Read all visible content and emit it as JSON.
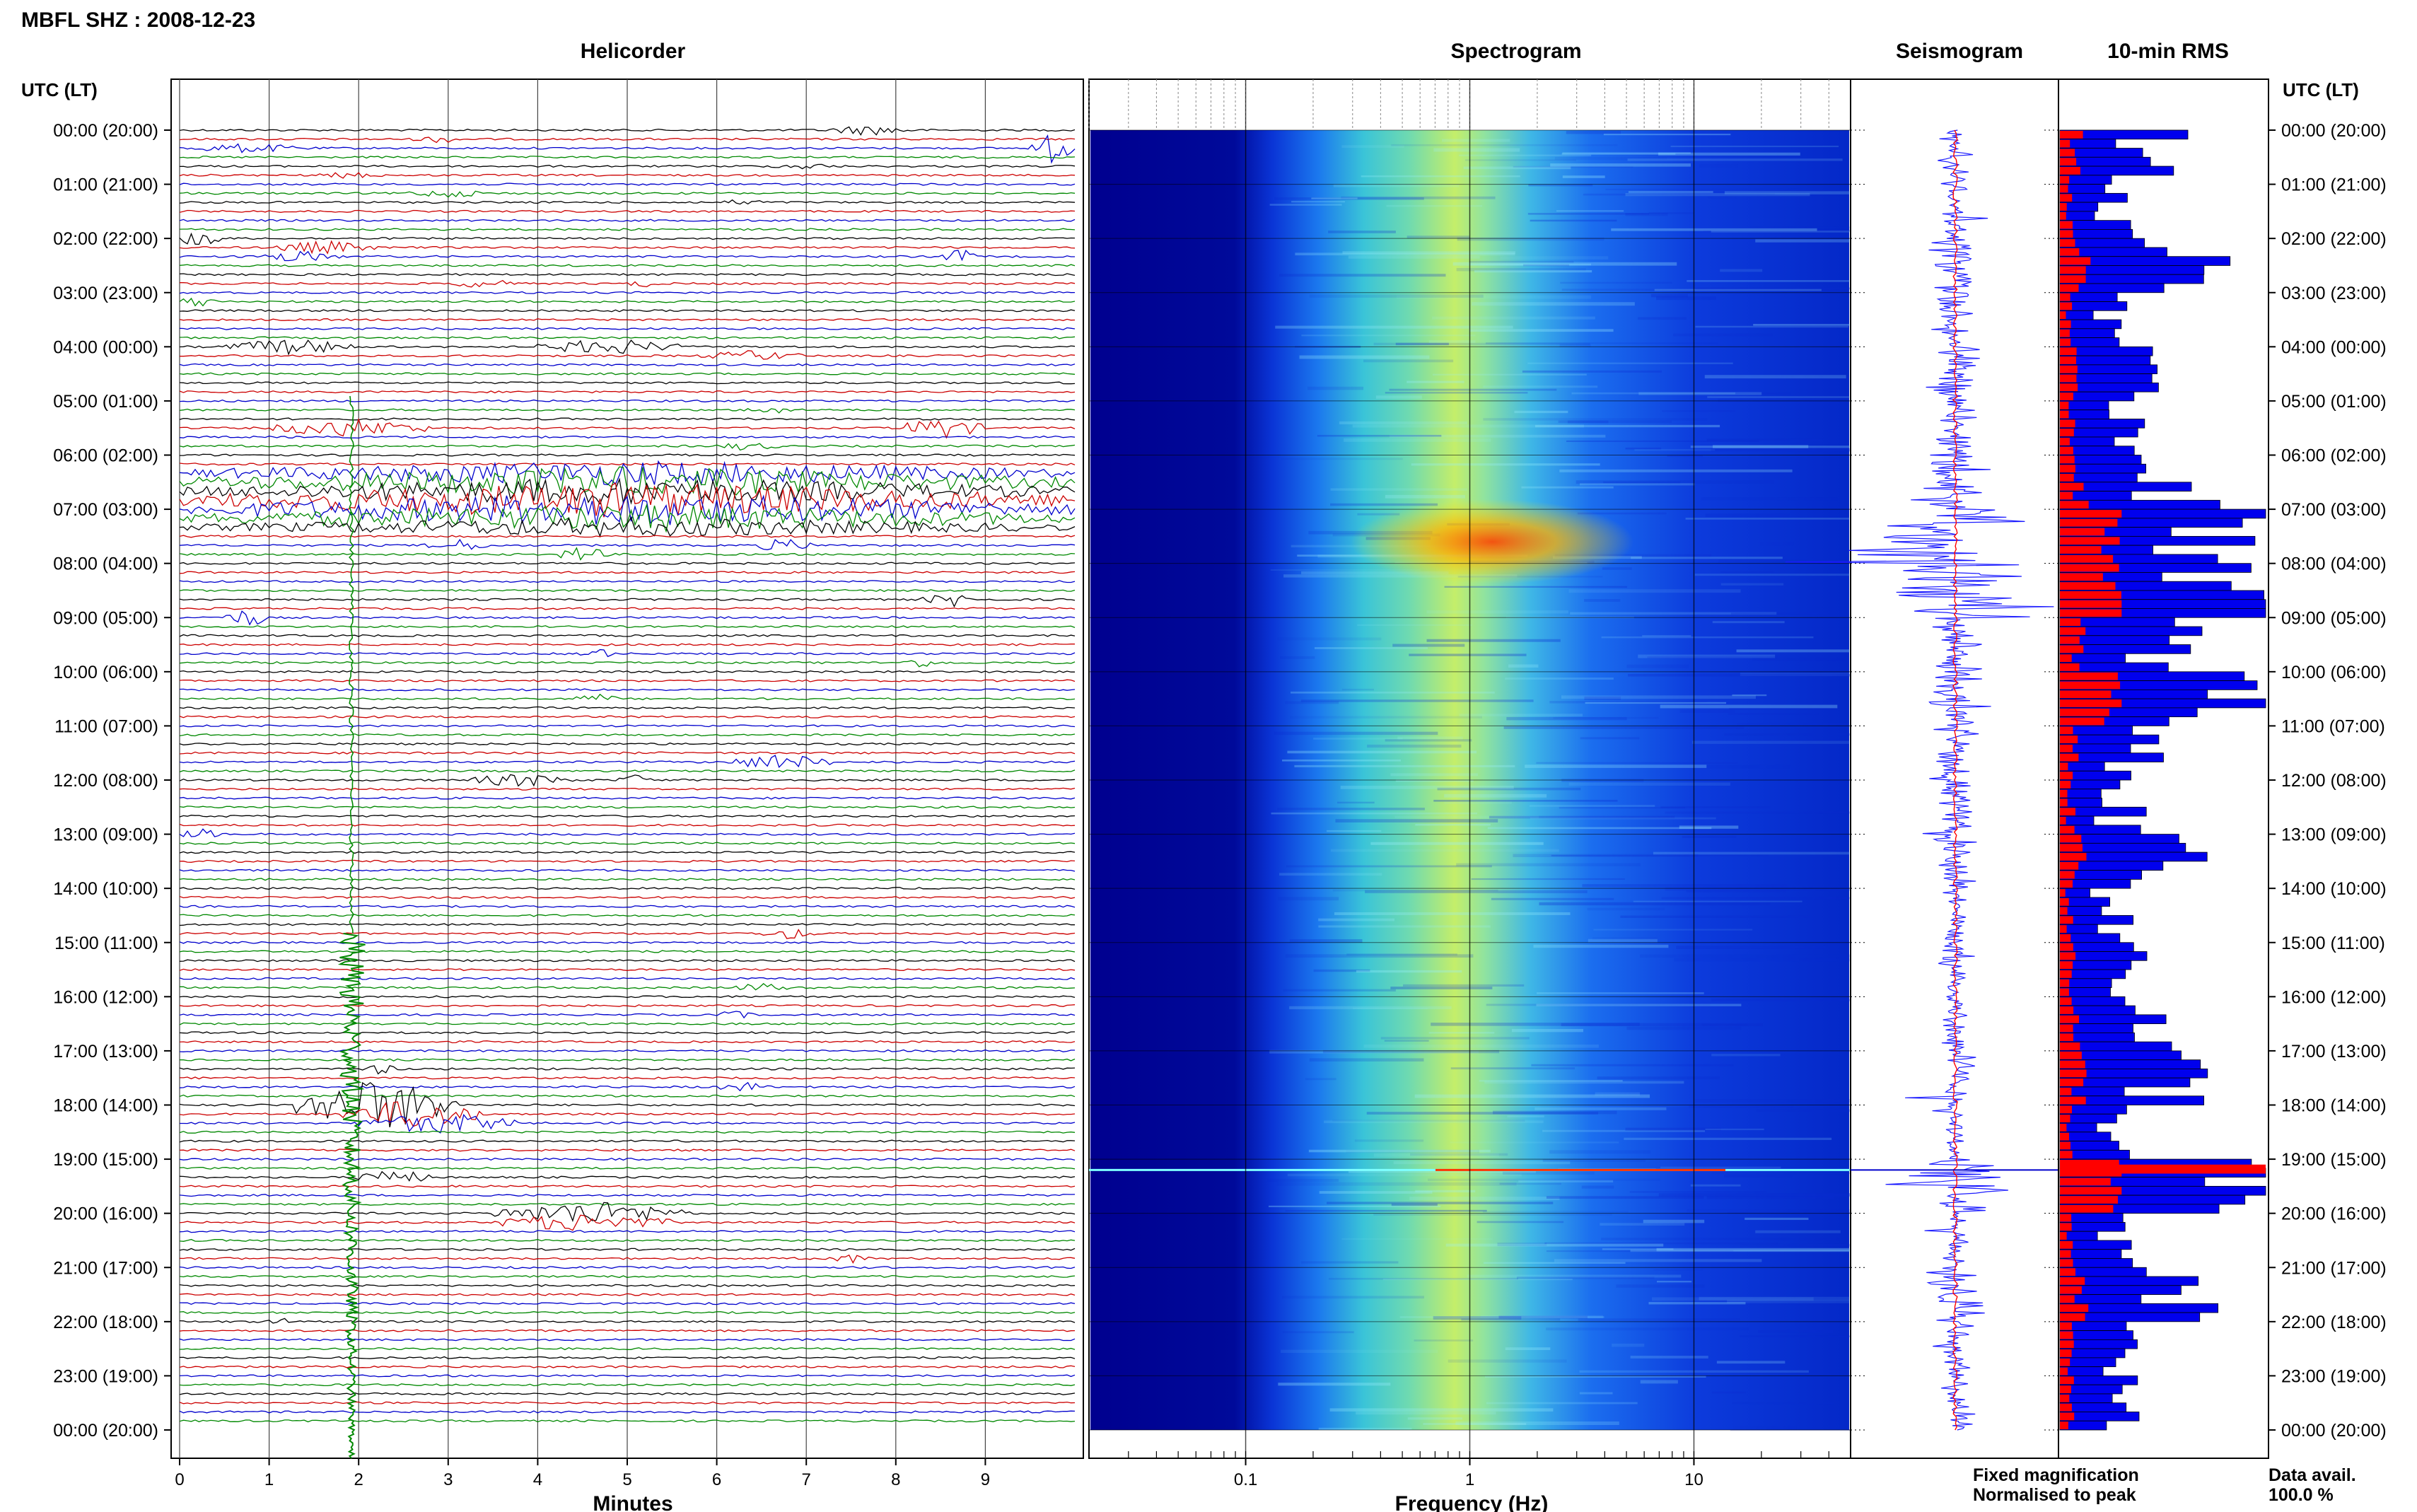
{
  "header": {
    "station_title": "MBFL SHZ : 2008-12-23"
  },
  "panels": {
    "helicorder_title": "Helicorder",
    "spectrogram_title": "Spectrogram",
    "seismogram_title": "Seismogram",
    "rms_title": "10-min RMS"
  },
  "axes": {
    "time_label_left": "UTC (LT)",
    "time_label_right": "UTC (LT)",
    "minutes_label": "Minutes",
    "frequency_label": "Frequency (Hz)",
    "minutes_ticks": [
      "0",
      "1",
      "2",
      "3",
      "4",
      "5",
      "6",
      "7",
      "8",
      "9"
    ],
    "frequency_ticks": [
      "0.1",
      "1",
      "10"
    ],
    "time_ticks": [
      "00:00 (20:00)",
      "01:00 (21:00)",
      "02:00 (22:00)",
      "03:00 (23:00)",
      "04:00 (00:00)",
      "05:00 (01:00)",
      "06:00 (02:00)",
      "07:00 (03:00)",
      "08:00 (04:00)",
      "09:00 (05:00)",
      "10:00 (06:00)",
      "11:00 (07:00)",
      "12:00 (08:00)",
      "13:00 (09:00)",
      "14:00 (10:00)",
      "15:00 (11:00)",
      "16:00 (12:00)",
      "17:00 (13:00)",
      "18:00 (14:00)",
      "19:00 (15:00)",
      "20:00 (16:00)",
      "21:00 (17:00)",
      "22:00 (18:00)",
      "23:00 (19:00)",
      "00:00 (20:00)"
    ]
  },
  "legend": {
    "fixed_label": "Fixed magnification",
    "normalised_label": "Normalised to peak",
    "fixed_color": "#1a1aff",
    "normalised_color": "#ff0000",
    "avail_label": "Data avail.",
    "avail_value": "100.0 %"
  },
  "colors": {
    "trace_cycle": [
      "#000000",
      "#cc0000",
      "#0000cc",
      "#008800"
    ],
    "rms_bar": "#0000ee",
    "rms_norm": "#ff0000",
    "seis_trace": "#1a1aff",
    "seis_norm": "#ff0000"
  },
  "chart_data": [
    {
      "type": "line",
      "title": "Helicorder",
      "xlabel": "Minutes",
      "ylabel": "UTC (LT)",
      "xlim": [
        0,
        10
      ],
      "trace_rows_per_hour": 6,
      "hours": 24,
      "description_colors": [
        "black",
        "red",
        "blue",
        "green"
      ]
    },
    {
      "type": "heatmap",
      "title": "Spectrogram",
      "xlabel": "Frequency (Hz)",
      "ylabel": "UTC (LT)",
      "x_scale": "log",
      "xlim": [
        0.02,
        50
      ],
      "hours": 24
    },
    {
      "type": "line",
      "title": "Seismogram",
      "hours": 24
    },
    {
      "type": "bar",
      "title": "10-min RMS",
      "orientation": "horizontal",
      "bins_per_hour": 6,
      "relative_values_hourly": [
        0.55,
        0.3,
        0.8,
        0.35,
        0.4,
        0.45,
        0.7,
        1.0,
        1.0,
        0.6,
        0.9,
        0.45,
        0.35,
        0.7,
        0.3,
        0.45,
        0.5,
        0.65,
        0.35,
        1.0,
        0.3,
        0.7,
        0.4,
        0.35
      ]
    }
  ]
}
